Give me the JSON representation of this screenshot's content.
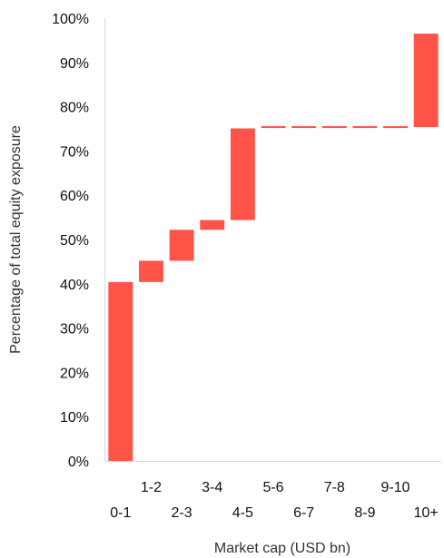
{
  "chart_data": {
    "type": "bar",
    "subtype": "waterfall",
    "categories": [
      "0-1",
      "1-2",
      "2-3",
      "3-4",
      "4-5",
      "5-6",
      "6-7",
      "7-8",
      "8-9",
      "9-10",
      "10+"
    ],
    "increments": [
      40.4,
      4.8,
      7.0,
      2.2,
      20.7,
      0.3,
      0.0,
      0.0,
      0.0,
      0.0,
      21.1
    ],
    "cumulative": [
      40.4,
      45.2,
      52.2,
      54.4,
      75.1,
      75.4,
      75.4,
      75.4,
      75.4,
      75.4,
      96.5
    ],
    "xlabel": "Market cap (USD bn)",
    "ylabel": "Percentage of total equity exposure",
    "ylim": [
      0,
      100
    ],
    "yticks": [
      "0%",
      "10%",
      "20%",
      "30%",
      "40%",
      "50%",
      "60%",
      "70%",
      "80%",
      "90%",
      "100%"
    ],
    "bar_color": "#ff5447",
    "axis_color": "#d9d9d9",
    "grid": false,
    "legend": "none"
  }
}
